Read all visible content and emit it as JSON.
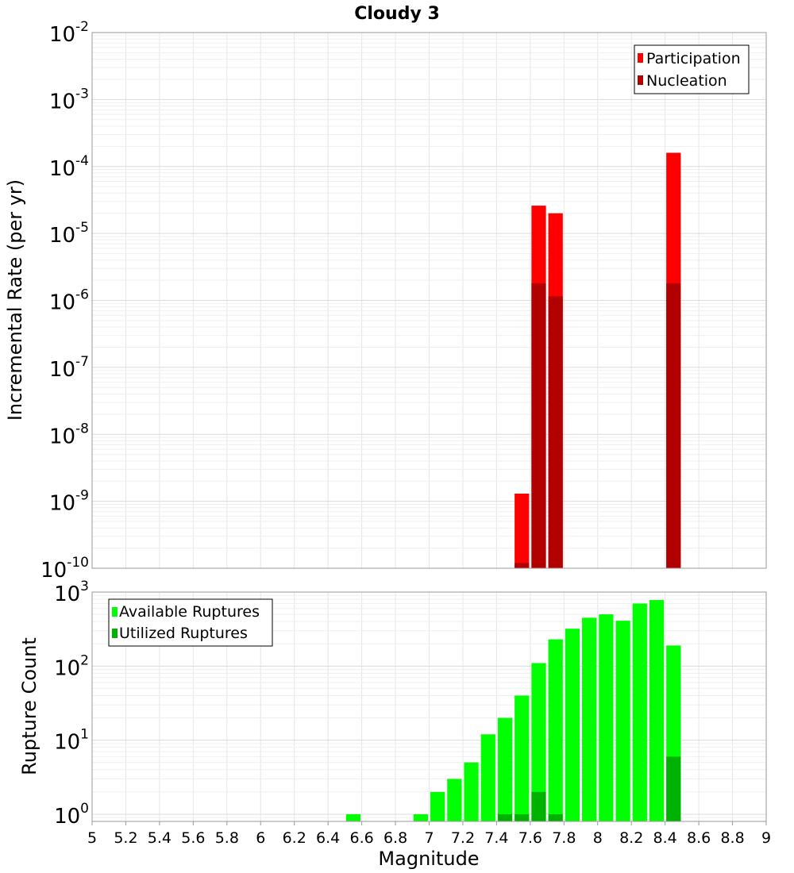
{
  "chart_data": [
    {
      "type": "bar",
      "title": "Cloudy 3",
      "ylabel": "Incremental Rate (per yr)",
      "xlabel": "",
      "yscale": "log",
      "ylim": [
        1e-10,
        0.01
      ],
      "xlim": [
        5,
        9
      ],
      "bin_width": 0.1,
      "legend": {
        "placement": "top-right",
        "entries": [
          "Participation",
          "Nucleation"
        ]
      },
      "series": [
        {
          "name": "Participation",
          "color": "#ff0000",
          "points": [
            [
              7.55,
              1.3e-09
            ],
            [
              7.65,
              2.6e-05
            ],
            [
              7.75,
              2e-05
            ],
            [
              8.45,
              0.00016
            ]
          ]
        },
        {
          "name": "Nucleation",
          "color": "#b20000",
          "points": [
            [
              7.55,
              1.2e-10
            ],
            [
              7.65,
              1.8e-06
            ],
            [
              7.75,
              1.15e-06
            ],
            [
              8.45,
              1.8e-06
            ]
          ]
        }
      ],
      "ytick_exponents": [
        "-2",
        "-3",
        "-4",
        "-5",
        "-6",
        "-7",
        "-8",
        "-9",
        "-10"
      ]
    },
    {
      "type": "bar",
      "title": "",
      "ylabel": "Rupture Count",
      "xlabel": "Magnitude",
      "yscale": "log",
      "ylim": [
        0.8,
        1000
      ],
      "xlim": [
        5,
        9
      ],
      "bin_width": 0.1,
      "legend": {
        "placement": "top-left",
        "entries": [
          "Available Ruptures",
          "Utilized Ruptures"
        ]
      },
      "series": [
        {
          "name": "Available Ruptures",
          "color": "#00ff00",
          "points": [
            [
              6.55,
              1
            ],
            [
              6.95,
              1
            ],
            [
              7.05,
              2
            ],
            [
              7.15,
              3
            ],
            [
              7.25,
              5
            ],
            [
              7.35,
              12
            ],
            [
              7.45,
              20
            ],
            [
              7.55,
              40
            ],
            [
              7.65,
              110
            ],
            [
              7.75,
              230
            ],
            [
              7.85,
              320
            ],
            [
              7.95,
              450
            ],
            [
              8.05,
              500
            ],
            [
              8.15,
              410
            ],
            [
              8.25,
              700
            ],
            [
              8.35,
              780
            ],
            [
              8.45,
              190
            ]
          ]
        },
        {
          "name": "Utilized Ruptures",
          "color": "#00b200",
          "points": [
            [
              7.45,
              1
            ],
            [
              7.55,
              1
            ],
            [
              7.65,
              2
            ],
            [
              7.75,
              1
            ],
            [
              8.45,
              6
            ]
          ]
        }
      ],
      "ytick_exponents": [
        "3",
        "2",
        "1",
        "0"
      ],
      "xticks": [
        "5",
        "5.2",
        "5.4",
        "5.6",
        "5.8",
        "6",
        "6.2",
        "6.4",
        "6.6",
        "6.8",
        "7",
        "7.2",
        "7.4",
        "7.6",
        "7.8",
        "8",
        "8.2",
        "8.4",
        "8.6",
        "8.8",
        "9"
      ]
    }
  ]
}
